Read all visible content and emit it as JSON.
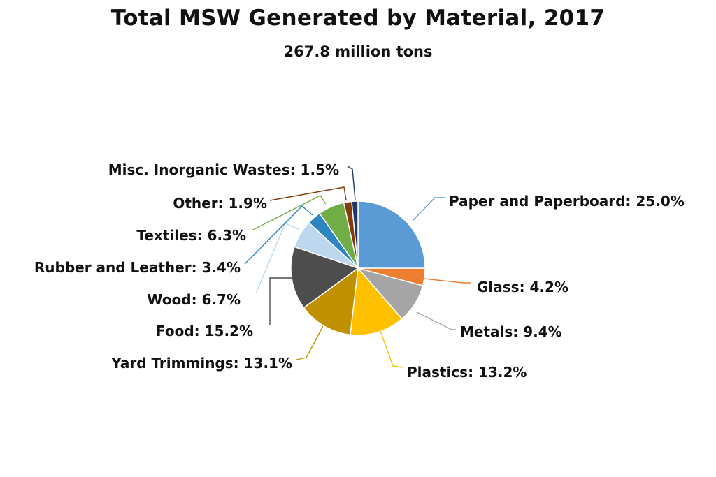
{
  "chart_data": {
    "type": "pie",
    "title": "Total MSW Generated by Material, 2017",
    "subtitle": "267.8 million tons",
    "slices": [
      {
        "label": "Paper and Paperboard",
        "value": 25.0,
        "display": "Paper and Paperboard: 25.0%",
        "color": "#5b9bd5"
      },
      {
        "label": "Glass",
        "value": 4.2,
        "display": "Glass: 4.2%",
        "color": "#ed7d31"
      },
      {
        "label": "Metals",
        "value": 9.4,
        "display": "Metals: 9.4%",
        "color": "#a5a5a5"
      },
      {
        "label": "Plastics",
        "value": 13.2,
        "display": "Plastics: 13.2%",
        "color": "#ffc000"
      },
      {
        "label": "Yard Trimmings",
        "value": 13.1,
        "display": "Yard Trimmings: 13.1%",
        "color": "#bf9000"
      },
      {
        "label": "Food",
        "value": 15.2,
        "display": "Food: 15.2%",
        "color": "#4d4d4d"
      },
      {
        "label": "Wood",
        "value": 6.7,
        "display": "Wood: 6.7%",
        "color": "#bdd7ee"
      },
      {
        "label": "Rubber and Leather",
        "value": 3.4,
        "display": "Rubber and Leather: 3.4%",
        "color": "#2e86c1"
      },
      {
        "label": "Textiles",
        "value": 6.3,
        "display": "Textiles: 6.3%",
        "color": "#70ad47"
      },
      {
        "label": "Other",
        "value": 1.9,
        "display": "Other: 1.9%",
        "color": "#843c0c"
      },
      {
        "label": "Misc. Inorganic Wastes",
        "value": 1.5,
        "display": "Misc. Inorganic Wastes: 1.5%",
        "color": "#1f3864"
      }
    ]
  }
}
